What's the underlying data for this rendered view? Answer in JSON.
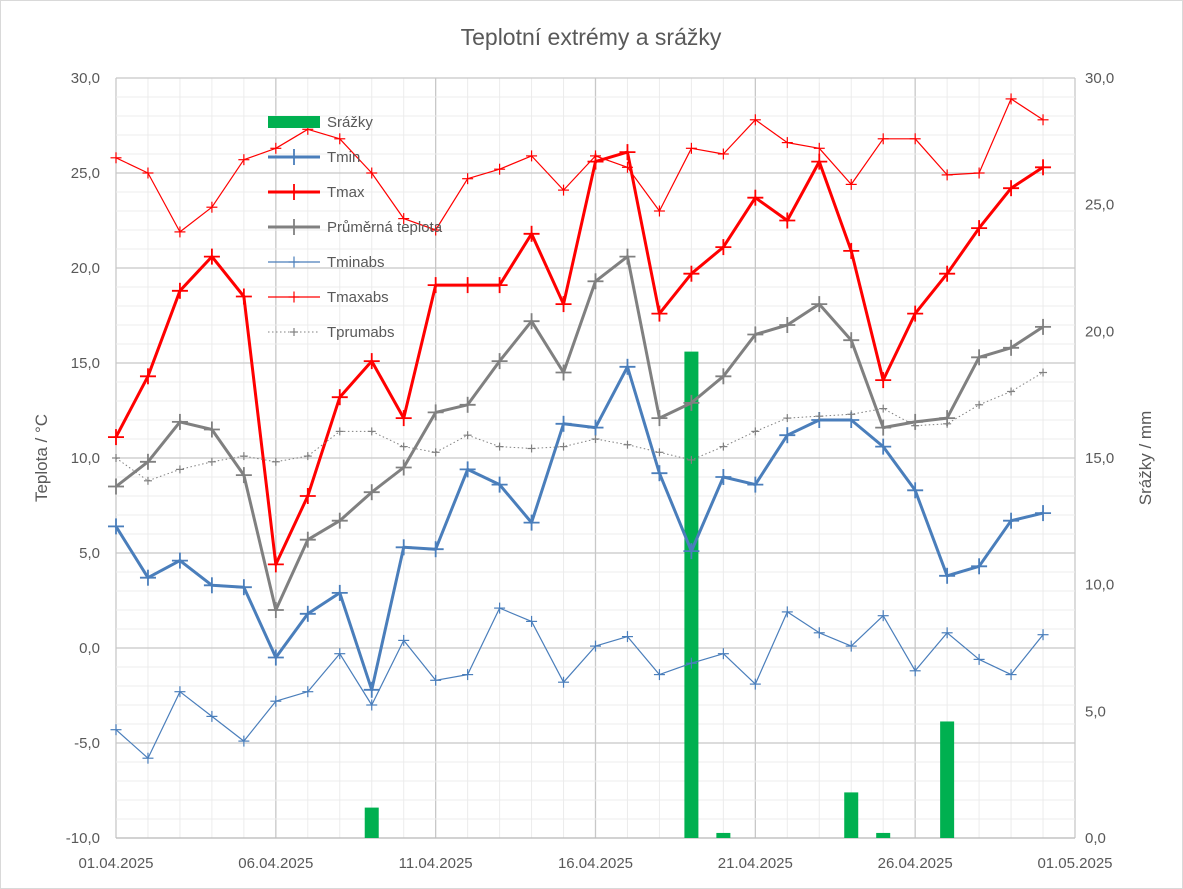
{
  "chart_data": {
    "type": "line",
    "title": "Teplotní extrémy a srážky",
    "ylabel": "Teplota / °C",
    "y2label": "Srážky / mm",
    "ylim": [
      -10,
      30
    ],
    "y2lim": [
      0,
      30
    ],
    "y_ticks": [
      "-10,0",
      "-5,0",
      "0,0",
      "5,0",
      "10,0",
      "15,0",
      "20,0",
      "25,0",
      "30,0"
    ],
    "y2_ticks": [
      "0,0",
      "5,0",
      "10,0",
      "15,0",
      "20,0",
      "25,0",
      "30,0"
    ],
    "x_tick_labels": [
      "01.04.2025",
      "06.04.2025",
      "11.04.2025",
      "16.04.2025",
      "21.04.2025",
      "26.04.2025",
      "01.05.2025"
    ],
    "x": [
      "01.04.2025",
      "02.04.2025",
      "03.04.2025",
      "04.04.2025",
      "05.04.2025",
      "06.04.2025",
      "07.04.2025",
      "08.04.2025",
      "09.04.2025",
      "10.04.2025",
      "11.04.2025",
      "12.04.2025",
      "13.04.2025",
      "14.04.2025",
      "15.04.2025",
      "16.04.2025",
      "17.04.2025",
      "18.04.2025",
      "19.04.2025",
      "20.04.2025",
      "21.04.2025",
      "22.04.2025",
      "23.04.2025",
      "24.04.2025",
      "25.04.2025",
      "26.04.2025",
      "27.04.2025",
      "28.04.2025",
      "29.04.2025",
      "30.04.2025",
      "01.05.2025"
    ],
    "grid": true,
    "legend_position": "top-left inside",
    "bar_series": {
      "name": "Srážky",
      "color": "#00b050",
      "axis": "right",
      "values": [
        0,
        0,
        0,
        0,
        0,
        0,
        0,
        0,
        1.2,
        0,
        0,
        0,
        0,
        0,
        0,
        0,
        0,
        0,
        19.2,
        0.2,
        0,
        0,
        0,
        1.8,
        0.2,
        0,
        4.6,
        0,
        0,
        0,
        0
      ]
    },
    "series": [
      {
        "name": "Tmin",
        "color": "#4a7ebb",
        "width": 3,
        "style": "solid",
        "values": [
          6.4,
          3.7,
          4.6,
          3.3,
          3.2,
          -0.5,
          1.8,
          2.9,
          -2.2,
          5.3,
          5.2,
          9.4,
          8.6,
          6.6,
          11.8,
          11.6,
          14.8,
          9.2,
          5.1,
          9.0,
          8.6,
          11.2,
          12.0,
          12.0,
          10.6,
          8.3,
          3.8,
          4.3,
          6.7,
          7.1,
          null
        ]
      },
      {
        "name": "Tmax",
        "color": "#ff0000",
        "width": 3,
        "style": "solid",
        "values": [
          11.1,
          14.3,
          18.8,
          20.6,
          18.5,
          4.4,
          8.0,
          13.2,
          15.1,
          12.1,
          19.1,
          19.1,
          19.1,
          21.8,
          18.1,
          25.6,
          26.1,
          17.6,
          19.7,
          21.1,
          23.7,
          22.5,
          25.6,
          20.9,
          14.1,
          17.6,
          19.7,
          22.1,
          24.2,
          25.3,
          null
        ]
      },
      {
        "name": "Průměrná teplota",
        "color": "#808080",
        "width": 3,
        "style": "solid",
        "values": [
          8.5,
          9.8,
          11.9,
          11.5,
          9.1,
          2.0,
          5.7,
          6.7,
          8.2,
          9.5,
          12.4,
          12.8,
          15.1,
          17.2,
          14.5,
          19.3,
          20.6,
          12.1,
          12.9,
          14.3,
          16.5,
          17.0,
          18.1,
          16.2,
          11.6,
          11.9,
          12.1,
          15.3,
          15.8,
          16.9,
          null
        ]
      },
      {
        "name": "Tminabs",
        "color": "#4a7ebb",
        "width": 1.2,
        "style": "solid",
        "values": [
          -4.3,
          -5.8,
          -2.3,
          -3.6,
          -4.9,
          -2.8,
          -2.3,
          -0.3,
          -3.0,
          0.4,
          -1.7,
          -1.4,
          2.1,
          1.4,
          -1.8,
          0.1,
          0.6,
          -1.4,
          -0.8,
          -0.3,
          -1.9,
          1.9,
          0.8,
          0.1,
          1.7,
          -1.2,
          0.8,
          -0.6,
          -1.4,
          0.7,
          null
        ]
      },
      {
        "name": "Tmaxabs",
        "color": "#ff0000",
        "width": 1.2,
        "style": "solid",
        "values": [
          25.8,
          25.0,
          21.9,
          23.2,
          25.7,
          26.3,
          27.3,
          26.8,
          25.0,
          22.6,
          22.0,
          24.7,
          25.2,
          25.9,
          24.1,
          25.9,
          25.3,
          23.0,
          26.3,
          26.0,
          27.8,
          26.6,
          26.3,
          24.4,
          26.8,
          26.8,
          24.9,
          25.0,
          28.9,
          27.8,
          null
        ]
      },
      {
        "name": "Tprumabs",
        "color": "#808080",
        "width": 1,
        "style": "dotted",
        "values": [
          10.0,
          8.8,
          9.4,
          9.8,
          10.1,
          9.8,
          10.1,
          11.4,
          11.4,
          10.6,
          10.3,
          11.2,
          10.6,
          10.5,
          10.6,
          11.0,
          10.7,
          10.3,
          9.9,
          10.6,
          11.4,
          12.1,
          12.2,
          12.3,
          12.6,
          11.7,
          11.8,
          12.8,
          13.5,
          14.5,
          null
        ]
      }
    ]
  }
}
